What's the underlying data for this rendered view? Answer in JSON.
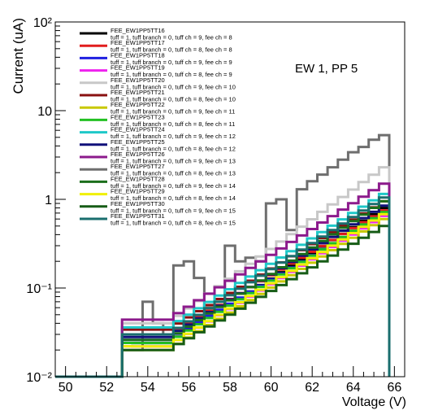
{
  "chart_data": {
    "type": "line",
    "step": true,
    "ylabel": "Current (uA)",
    "xlabel": "Voltage (V)",
    "annotation": "EW 1, PP 5",
    "xlim": [
      49.5,
      66.5
    ],
    "ylim": [
      0.01,
      100
    ],
    "yscale": "log",
    "grid": false,
    "legend": "top-left",
    "x_ticks": [
      50,
      52,
      54,
      56,
      58,
      60,
      62,
      64,
      66
    ],
    "x_tick_labels": [
      "50",
      "52",
      "54",
      "56",
      "58",
      "60",
      "62",
      "64",
      "66"
    ],
    "y_ticks": [
      0.01,
      0.1,
      1,
      10,
      100
    ],
    "y_tick_labels": [
      "10⁻²",
      "10⁻¹",
      "1",
      "10",
      "10²"
    ],
    "bin_start": 52.75,
    "bin_width": 0.5,
    "bin_count": 26,
    "baseline": 0.01,
    "series": [
      {
        "name": "FEE_EW1PP5TT16",
        "detail": "tuff = 1, tuff branch = 0, tuff ch = 9, fee ch = 8",
        "color": "#000000",
        "start": 0.024,
        "end": 0.8
      },
      {
        "name": "FEE_EW1PP5TT17",
        "detail": "tuff = 1, tuff branch = 0, tuff ch = 8, fee ch = 8",
        "color": "#e11d1d",
        "start": 0.03,
        "end": 0.75
      },
      {
        "name": "FEE_EW1PP5TT18",
        "detail": "tuff = 1, tuff branch = 0, tuff ch = 9, fee ch = 9",
        "color": "#1f1fe0",
        "start": 0.026,
        "end": 0.7
      },
      {
        "name": "FEE_EW1PP5TT19",
        "detail": "tuff = 1, tuff branch = 0, tuff ch = 8, fee ch = 9",
        "color": "#ee22ee",
        "start": 0.022,
        "end": 0.65
      },
      {
        "name": "FEE_EW1PP5TT20",
        "detail": "tuff = 1, tuff branch = 0, tuff ch = 9, fee ch = 10",
        "color": "#c8c8c8",
        "start": 0.04,
        "end": 2.3
      },
      {
        "name": "FEE_EW1PP5TT21",
        "detail": "tuff = 1, tuff branch = 0, tuff ch = 8, fee ch = 10",
        "color": "#8a1010",
        "start": 0.034,
        "end": 0.95
      },
      {
        "name": "FEE_EW1PP5TT22",
        "detail": "tuff = 1, tuff branch = 0, tuff ch = 9, fee ch = 11",
        "color": "#c8c800",
        "start": 0.02,
        "end": 0.6
      },
      {
        "name": "FEE_EW1PP5TT23",
        "detail": "tuff = 1, tuff branch = 0, tuff ch = 8, fee ch = 11",
        "color": "#22c022",
        "start": 0.024,
        "end": 0.72
      },
      {
        "name": "FEE_EW1PP5TT24",
        "detail": "tuff = 1, tuff branch = 0, tuff ch = 9, fee ch = 12",
        "color": "#1ec8c8",
        "start": 0.036,
        "end": 1.15
      },
      {
        "name": "FEE_EW1PP5TT25",
        "detail": "tuff = 1, tuff branch = 0, tuff ch = 8, fee ch = 12",
        "color": "#10107a",
        "start": 0.028,
        "end": 0.85
      },
      {
        "name": "FEE_EW1PP5TT26",
        "detail": "tuff = 1, tuff branch = 0, tuff ch = 9, fee ch = 13",
        "color": "#8c1a8c",
        "start": 0.044,
        "end": 1.5
      },
      {
        "name": "FEE_EW1PP5TT27",
        "detail": "tuff = 1, tuff branch = 0, tuff ch = 8, fee ch = 13",
        "color": "#6e6e6e",
        "values": [
          0.02,
          0.02,
          0.07,
          0.04,
          0.03,
          0.18,
          0.2,
          0.13,
          0.06,
          0.07,
          0.3,
          0.2,
          0.22,
          0.2,
          0.9,
          1.0,
          0.45,
          1.3,
          1.6,
          1.9,
          2.3,
          2.8,
          3.4,
          3.9,
          4.7,
          5.3
        ]
      },
      {
        "name": "FEE_EW1PP5TT28",
        "detail": "tuff = 1, tuff branch = 0, tuff ch = 9, fee ch = 14",
        "color": "#1b6e1b",
        "start": 0.026,
        "end": 0.95
      },
      {
        "name": "FEE_EW1PP5TT29",
        "detail": "tuff = 1, tuff branch = 0, tuff ch = 8, fee ch = 14",
        "color": "#f0f000",
        "start": 0.022,
        "end": 0.68
      },
      {
        "name": "FEE_EW1PP5TT30",
        "detail": "tuff = 1, tuff branch = 0, tuff ch = 9, fee ch = 15",
        "color": "#165c16",
        "start": 0.02,
        "end": 0.5
      },
      {
        "name": "FEE_EW1PP5TT31",
        "detail": "tuff = 1, tuff branch = 0, tuff ch = 8, fee ch = 15",
        "color": "#1a6e6e",
        "start": 0.03,
        "end": 1.05
      }
    ]
  }
}
